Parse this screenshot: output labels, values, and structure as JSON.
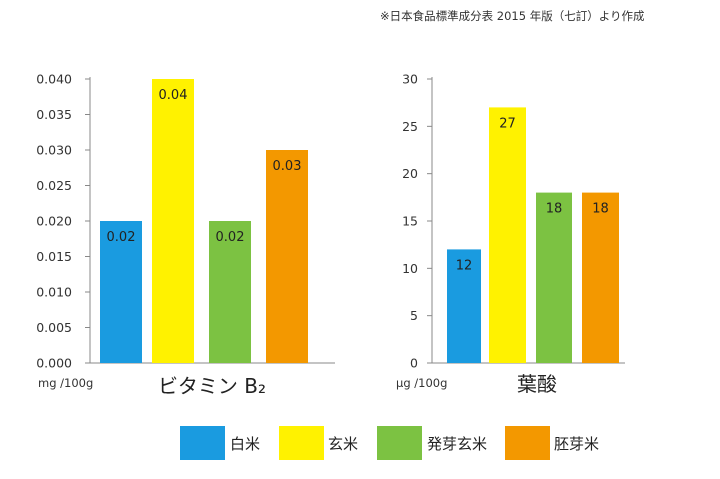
{
  "source_note": "※日本食品標準成分表 2015 年版（七訂）より作成",
  "chart_data": [
    {
      "type": "bar",
      "title": "ビタミン B₂",
      "unit": "mg /100g",
      "categories": [
        "白米",
        "玄米",
        "発芽玄米",
        "胚芽米"
      ],
      "values": [
        0.02,
        0.04,
        0.02,
        0.03
      ],
      "value_labels": [
        "0.02",
        "0.04",
        "0.02",
        "0.03"
      ],
      "ylim": [
        0,
        0.04
      ],
      "yticks": [
        "0.000",
        "0.005",
        "0.010",
        "0.015",
        "0.020",
        "0.025",
        "0.030",
        "0.035",
        "0.040"
      ],
      "colors": [
        "#1a9be0",
        "#fff200",
        "#7cc242",
        "#f39800"
      ]
    },
    {
      "type": "bar",
      "title": "葉酸",
      "unit": "μg /100g",
      "categories": [
        "白米",
        "玄米",
        "発芽玄米",
        "胚芽米"
      ],
      "values": [
        12,
        27,
        18,
        18
      ],
      "value_labels": [
        "12",
        "27",
        "18",
        "18"
      ],
      "ylim": [
        0,
        30
      ],
      "yticks": [
        "0",
        "5",
        "10",
        "15",
        "20",
        "25",
        "30"
      ],
      "colors": [
        "#1a9be0",
        "#fff200",
        "#7cc242",
        "#f39800"
      ]
    }
  ],
  "legend": [
    {
      "label": "白米",
      "color": "#1a9be0"
    },
    {
      "label": "玄米",
      "color": "#fff200"
    },
    {
      "label": "発芽玄米",
      "color": "#7cc242"
    },
    {
      "label": "胚芽米",
      "color": "#f39800"
    }
  ]
}
